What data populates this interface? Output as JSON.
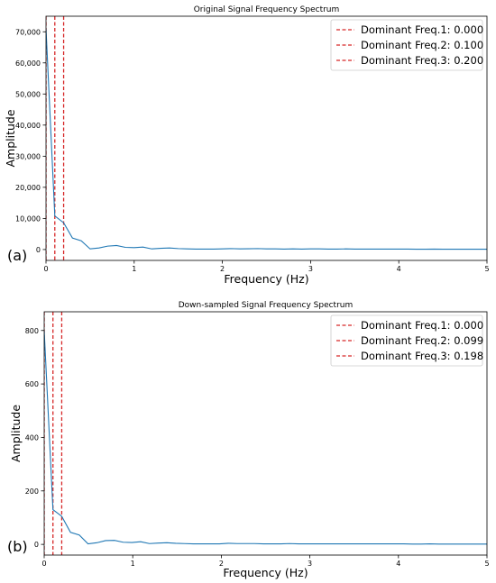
{
  "chart_data": [
    {
      "type": "line",
      "panel_label": "(a)",
      "title": "Original Signal Frequency Spectrum",
      "xlabel": "Frequency (Hz)",
      "ylabel": "Amplitude",
      "xlim": [
        0,
        5
      ],
      "ylim": [
        -3500,
        75000
      ],
      "xticks": [
        0,
        1,
        2,
        3,
        4,
        5
      ],
      "xtick_labels": [
        "0",
        "1",
        "2",
        "3",
        "4",
        "5"
      ],
      "yticks": [
        0,
        10000,
        20000,
        30000,
        40000,
        50000,
        60000,
        70000
      ],
      "ytick_labels": [
        "0",
        "10,000",
        "20,000",
        "30,000",
        "40,000",
        "50,000",
        "60,000",
        "70,000"
      ],
      "grid": false,
      "legend_position": "top-right",
      "line_color": "#1f77b4",
      "marker_color": "#d62728",
      "series": [
        {
          "x": [
            0,
            0.1,
            0.2,
            0.3,
            0.4,
            0.5,
            0.6,
            0.7,
            0.8,
            0.9,
            1.0,
            1.1,
            1.2,
            1.3,
            1.4,
            1.5,
            1.6,
            1.7,
            1.8,
            1.9,
            2.0,
            2.1,
            2.2,
            2.3,
            2.4,
            2.5,
            2.6,
            2.7,
            2.8,
            2.9,
            3.0,
            3.1,
            3.2,
            3.3,
            3.4,
            3.5,
            3.6,
            3.7,
            3.8,
            3.9,
            4.0,
            4.1,
            4.2,
            4.3,
            4.4,
            4.5,
            4.6,
            4.7,
            4.8,
            4.9,
            5.0
          ],
          "y": [
            71000,
            10800,
            8600,
            3700,
            2800,
            200,
            500,
            1100,
            1300,
            700,
            600,
            800,
            200,
            400,
            500,
            300,
            200,
            150,
            150,
            150,
            200,
            300,
            200,
            250,
            300,
            200,
            200,
            150,
            200,
            150,
            200,
            200,
            150,
            150,
            200,
            150,
            150,
            150,
            150,
            150,
            150,
            150,
            100,
            100,
            150,
            100,
            100,
            100,
            100,
            100,
            100
          ]
        }
      ],
      "vlines": [
        {
          "x": 0.0,
          "label": "Dominant Freq.1: 0.000"
        },
        {
          "x": 0.1,
          "label": "Dominant Freq.2: 0.100"
        },
        {
          "x": 0.2,
          "label": "Dominant Freq.3: 0.200"
        }
      ]
    },
    {
      "type": "line",
      "panel_label": "(b)",
      "title": "Down-sampled Signal Frequency Spectrum",
      "xlabel": "Frequency (Hz)",
      "ylabel": "Amplitude",
      "xlim": [
        0,
        5
      ],
      "ylim": [
        -40,
        870
      ],
      "xticks": [
        0,
        1,
        2,
        3,
        4,
        5
      ],
      "xtick_labels": [
        "0",
        "1",
        "2",
        "3",
        "4",
        "5"
      ],
      "yticks": [
        0,
        200,
        400,
        600,
        800
      ],
      "ytick_labels": [
        "0",
        "200",
        "400",
        "600",
        "800"
      ],
      "grid": false,
      "legend_position": "top-right",
      "line_color": "#1f77b4",
      "marker_color": "#d62728",
      "series": [
        {
          "x": [
            0,
            0.099,
            0.198,
            0.297,
            0.396,
            0.495,
            0.594,
            0.693,
            0.792,
            0.891,
            0.99,
            1.089,
            1.188,
            1.287,
            1.386,
            1.485,
            1.584,
            1.683,
            1.782,
            1.881,
            1.98,
            2.079,
            2.178,
            2.277,
            2.376,
            2.475,
            2.574,
            2.673,
            2.772,
            2.871,
            2.97,
            3.069,
            3.168,
            3.267,
            3.366,
            3.465,
            3.564,
            3.663,
            3.762,
            3.861,
            3.96,
            4.059,
            4.158,
            4.257,
            4.356,
            4.455,
            4.554,
            4.653,
            4.752,
            4.851,
            4.95,
            5.0
          ],
          "y": [
            800,
            130,
            105,
            45,
            35,
            2,
            6,
            14,
            15,
            8,
            7,
            10,
            3,
            5,
            6,
            4,
            3,
            2,
            2,
            2,
            2,
            4,
            3,
            3,
            3,
            2,
            2,
            2,
            3,
            2,
            2,
            2,
            2,
            2,
            2,
            2,
            2,
            2,
            2,
            2,
            2,
            2,
            1,
            1,
            2,
            1,
            1,
            1,
            1,
            1,
            1,
            1
          ]
        }
      ],
      "vlines": [
        {
          "x": 0.0,
          "label": "Dominant Freq.1: 0.000"
        },
        {
          "x": 0.099,
          "label": "Dominant Freq.2: 0.099"
        },
        {
          "x": 0.198,
          "label": "Dominant Freq.3: 0.198"
        }
      ]
    }
  ]
}
